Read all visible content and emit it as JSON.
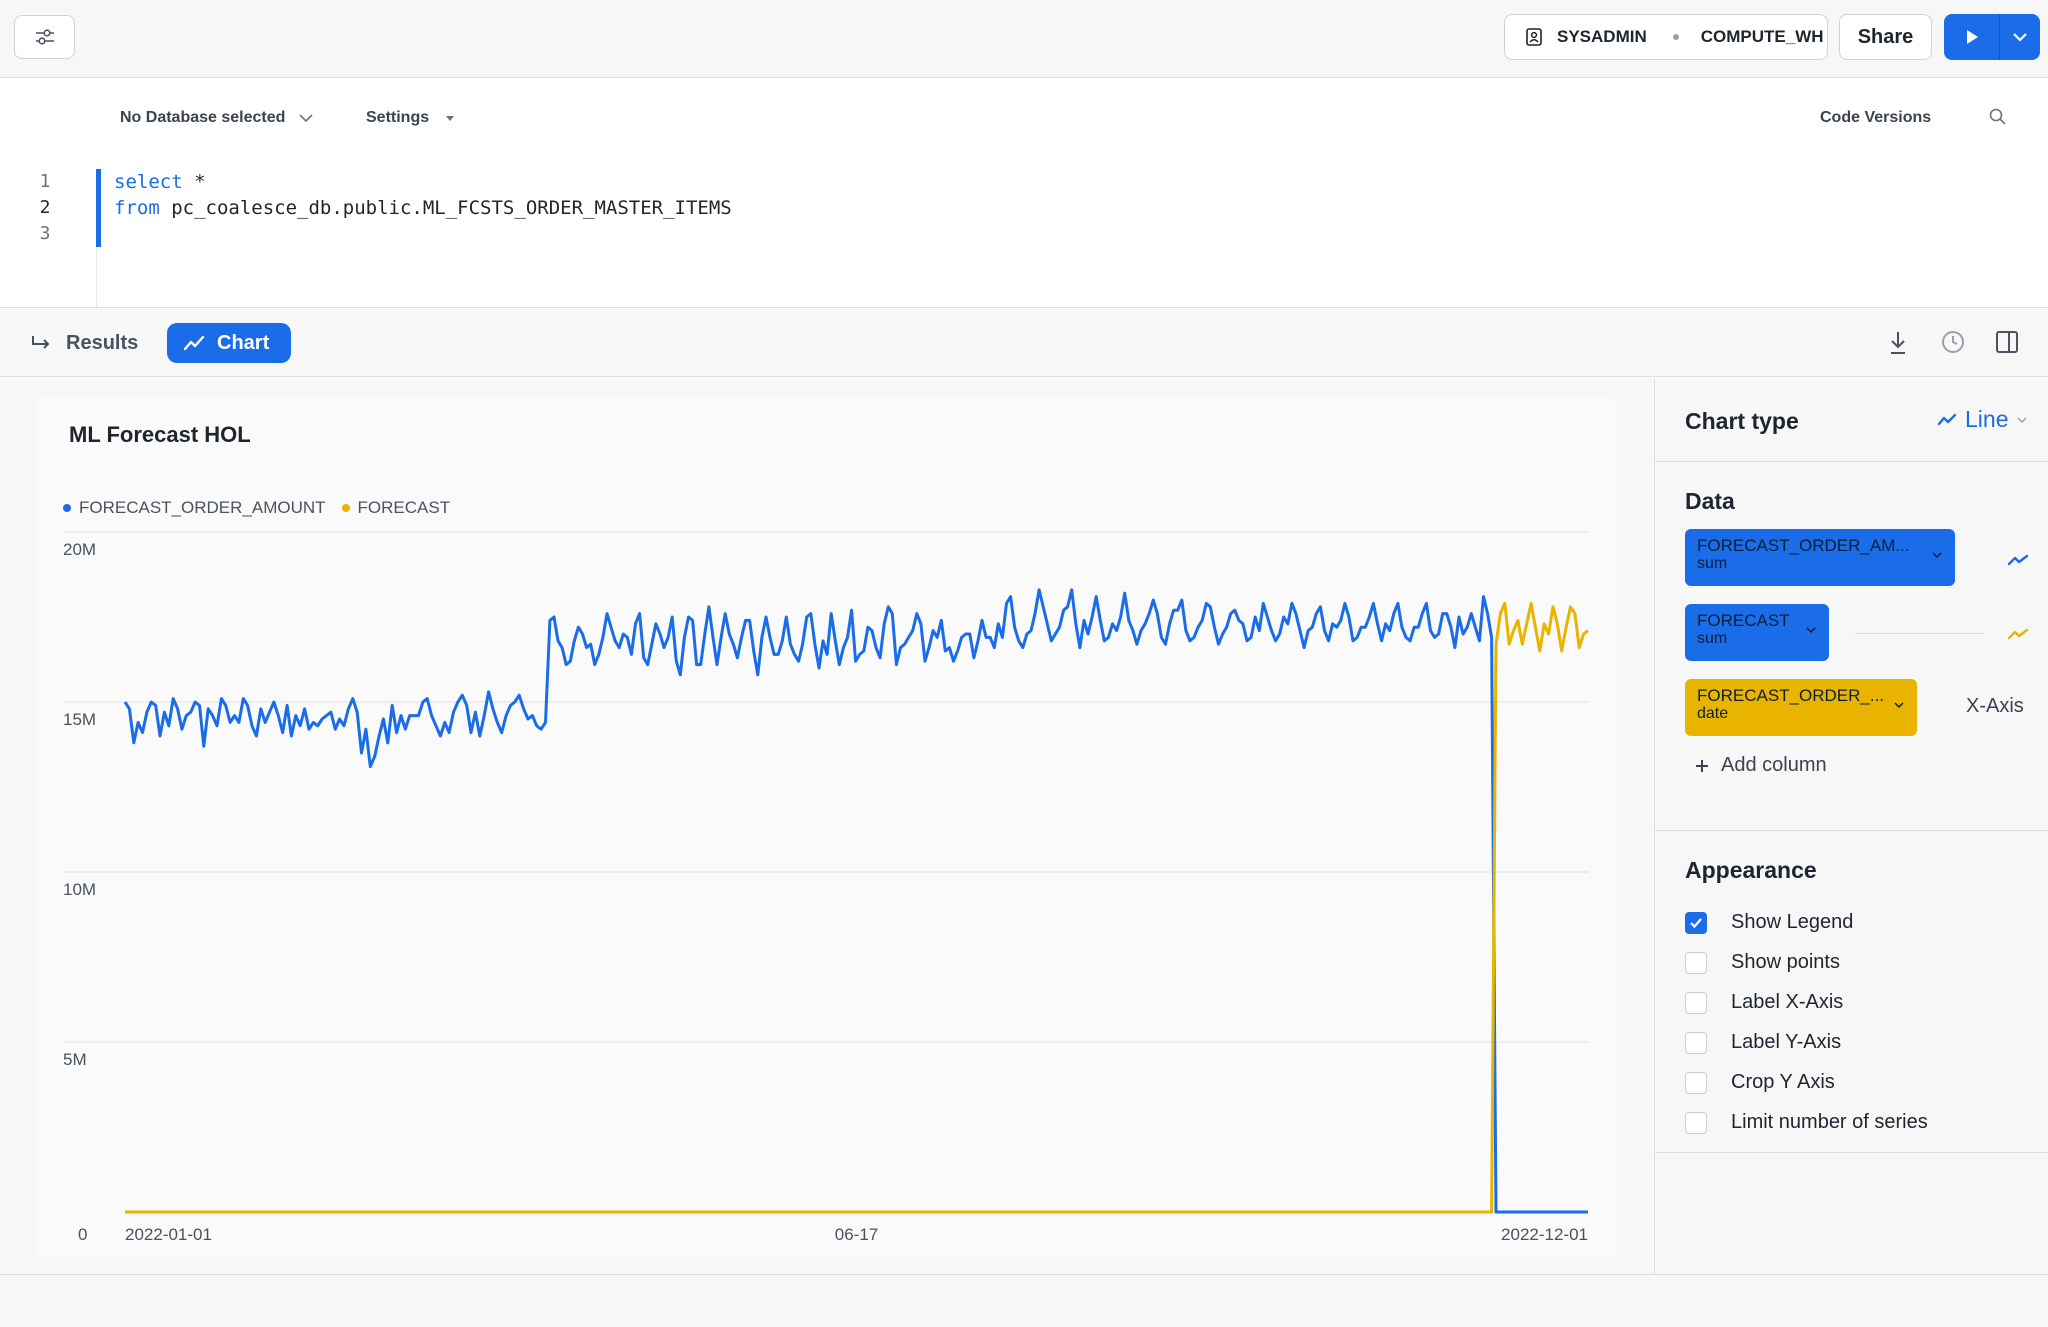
{
  "toolbar": {
    "role": "SYSADMIN",
    "warehouse": "COMPUTE_WH",
    "share_label": "Share"
  },
  "editor": {
    "database_select": "No Database selected",
    "settings_label": "Settings",
    "code_versions_label": "Code Versions",
    "lines": [
      {
        "number": "1",
        "keyword": "select",
        "rest": " *"
      },
      {
        "number": "2",
        "keyword": "from",
        "rest": " pc_coalesce_db.public.ML_FCSTS_ORDER_MASTER_ITEMS"
      },
      {
        "number": "3",
        "keyword": "",
        "rest": ""
      }
    ]
  },
  "tabs": {
    "results_label": "Results",
    "chart_label": "Chart"
  },
  "chart_data": {
    "type": "line",
    "title": "ML Forecast HOL",
    "xlabel": "",
    "ylabel": "",
    "x_ticks": [
      "2022-01-01",
      "06-17",
      "2022-12-01"
    ],
    "y_ticks": [
      "0",
      "5M",
      "10M",
      "15M",
      "20M"
    ],
    "ylim": [
      0,
      20000000
    ],
    "xlim": [
      "2022-01-01",
      "2022-12-01"
    ],
    "grid": true,
    "legend_position": "top-left",
    "series": [
      {
        "name": "FORECAST_ORDER_AMOUNT",
        "color": "#1a6ce8",
        "segments": [
          {
            "start": "2022-01-01",
            "end": "2022-04-07",
            "values": [
              15.0,
              14.8,
              13.8,
              14.4,
              14.1,
              14.7,
              15.0,
              14.9,
              14.0,
              14.7,
              14.3,
              15.1,
              14.8,
              14.2,
              14.6,
              14.7,
              15.0,
              14.9,
              13.7,
              14.8,
              14.6,
              14.3,
              15.1,
              14.9,
              14.4,
              14.6,
              14.4,
              15.1,
              14.9,
              14.3,
              14.0,
              14.8,
              14.4,
              14.7,
              15.0,
              14.6,
              14.1,
              14.9,
              14.0,
              14.6,
              14.3,
              14.8,
              14.2,
              14.4,
              14.3,
              14.5,
              14.6,
              14.7,
              14.2,
              14.5,
              14.3,
              14.8,
              15.1,
              14.7,
              13.5,
              14.2,
              13.1,
              13.4,
              14.0,
              14.5,
              13.8,
              14.9,
              14.1,
              14.6,
              14.2,
              14.6,
              14.6,
              14.6,
              15.0,
              15.1,
              14.6,
              14.3,
              14.0,
              14.4,
              14.1,
              14.7,
              15.0,
              15.2,
              14.9,
              14.1,
              14.7,
              14.0,
              14.6,
              15.3,
              14.8,
              14.4,
              14.1,
              14.6,
              14.9,
              15.0,
              15.2,
              14.8,
              14.5,
              14.6,
              14.3,
              14.2,
              14.4
            ]
          },
          {
            "start": "2022-04-08",
            "end": "2022-11-09",
            "values": [
              17.4,
              17.5,
              16.8,
              16.6,
              16.1,
              16.2,
              16.8,
              17.2,
              17.0,
              16.6,
              16.7,
              16.1,
              16.4,
              16.9,
              17.6,
              17.2,
              16.8,
              16.6,
              17.0,
              16.9,
              16.4,
              17.3,
              17.6,
              16.3,
              16.1,
              16.7,
              17.3,
              17.0,
              16.6,
              16.9,
              17.5,
              16.2,
              15.8,
              16.9,
              17.5,
              17.4,
              16.1,
              16.1,
              17.0,
              17.8,
              16.9,
              16.1,
              16.9,
              17.6,
              17.0,
              16.7,
              16.3,
              16.9,
              17.4,
              17.4,
              16.5,
              15.8,
              16.9,
              17.5,
              16.9,
              16.4,
              16.4,
              16.8,
              17.5,
              16.7,
              16.4,
              16.2,
              16.7,
              17.5,
              17.6,
              16.7,
              16.0,
              16.8,
              16.4,
              17.6,
              16.8,
              16.1,
              16.6,
              16.9,
              17.7,
              16.2,
              16.4,
              16.5,
              17.2,
              17.1,
              16.6,
              16.3,
              17.3,
              17.8,
              17.6,
              16.1,
              16.6,
              16.7,
              16.9,
              17.1,
              17.6,
              17.3,
              16.2,
              16.6,
              17.1,
              16.9,
              17.4,
              16.5,
              16.6,
              16.2,
              16.5,
              16.9,
              17.0,
              17.0,
              16.3,
              16.8,
              17.4,
              16.9,
              16.9,
              16.6,
              17.3,
              16.9,
              17.9,
              18.1,
              17.2,
              16.8,
              16.6,
              17.0,
              17.1,
              17.6,
              18.3,
              17.8,
              17.3,
              16.8,
              17.0,
              17.2,
              17.7,
              17.8,
              18.3,
              17.3,
              16.6,
              17.4,
              17.0,
              17.5,
              18.1,
              17.4,
              16.8,
              16.9,
              17.3,
              17.1,
              17.5,
              18.2,
              17.4,
              17.1,
              16.7,
              17.1,
              17.3,
              17.6,
              18.0,
              17.6,
              16.9,
              16.7,
              17.3,
              17.7,
              17.7,
              18.0,
              17.1,
              16.8,
              16.9,
              17.2,
              17.4,
              17.9,
              17.8,
              17.2,
              16.7,
              17.0,
              17.2,
              17.6,
              17.7,
              17.4,
              17.3,
              16.8,
              16.9,
              17.5,
              17.1,
              17.9,
              17.5,
              17.1,
              16.8,
              17.0,
              17.5,
              17.3,
              17.9,
              17.6,
              17.1,
              16.6,
              17.1,
              17.2,
              17.6,
              17.8,
              17.1,
              16.8,
              17.3,
              17.2,
              17.4,
              17.9,
              17.5,
              16.8,
              16.9,
              17.2,
              17.2,
              17.5,
              17.9,
              17.3,
              16.8,
              17.3,
              17.1,
              17.6,
              17.9,
              17.2,
              16.9,
              16.8,
              17.2,
              17.2,
              17.6,
              17.9,
              17.1,
              16.9,
              17.0,
              17.6,
              17.6,
              17.2,
              16.6,
              17.5,
              17.0,
              17.2,
              17.6,
              17.2,
              16.8,
              18.1,
              17.6,
              16.9
            ]
          },
          {
            "start": "2022-11-10",
            "end": "2022-12-01",
            "values": [
              0,
              0,
              0,
              0,
              0,
              0,
              0,
              0,
              0,
              0,
              0,
              0,
              0,
              0,
              0,
              0,
              0,
              0,
              0,
              0,
              0,
              0
            ]
          }
        ]
      },
      {
        "name": "FORECAST",
        "color": "#e9b400",
        "segments": [
          {
            "start": "2022-01-01",
            "end": "2022-11-09",
            "values": "zero"
          },
          {
            "start": "2022-11-10",
            "end": "2022-12-01",
            "values": [
              16.7,
              17.6,
              17.9,
              16.7,
              17.1,
              17.4,
              16.7,
              17.3,
              17.9,
              17.2,
              16.5,
              17.3,
              17.0,
              17.8,
              17.3,
              16.5,
              17.2,
              17.8,
              17.6,
              16.6,
              17.0,
              17.1
            ]
          }
        ]
      }
    ]
  },
  "side_panel": {
    "chart_type_label": "Chart type",
    "chart_type_value": "Line",
    "data_label": "Data",
    "columns": [
      {
        "name": "FORECAST_ORDER_AM...",
        "agg": "sum",
        "color": "#1a6ce8"
      },
      {
        "name": "FORECAST",
        "agg": "sum",
        "color": "#1a6ce8"
      },
      {
        "name": "FORECAST_ORDER_...",
        "agg": "date",
        "color": "#e9b400",
        "role": "X-Axis"
      }
    ],
    "add_column_label": "Add column",
    "appearance_label": "Appearance",
    "options": [
      {
        "label": "Show Legend",
        "checked": true
      },
      {
        "label": "Show points",
        "checked": false
      },
      {
        "label": "Label X-Axis",
        "checked": false
      },
      {
        "label": "Label Y-Axis",
        "checked": false
      },
      {
        "label": "Crop Y Axis",
        "checked": false
      },
      {
        "label": "Limit number of series",
        "checked": false
      }
    ]
  }
}
